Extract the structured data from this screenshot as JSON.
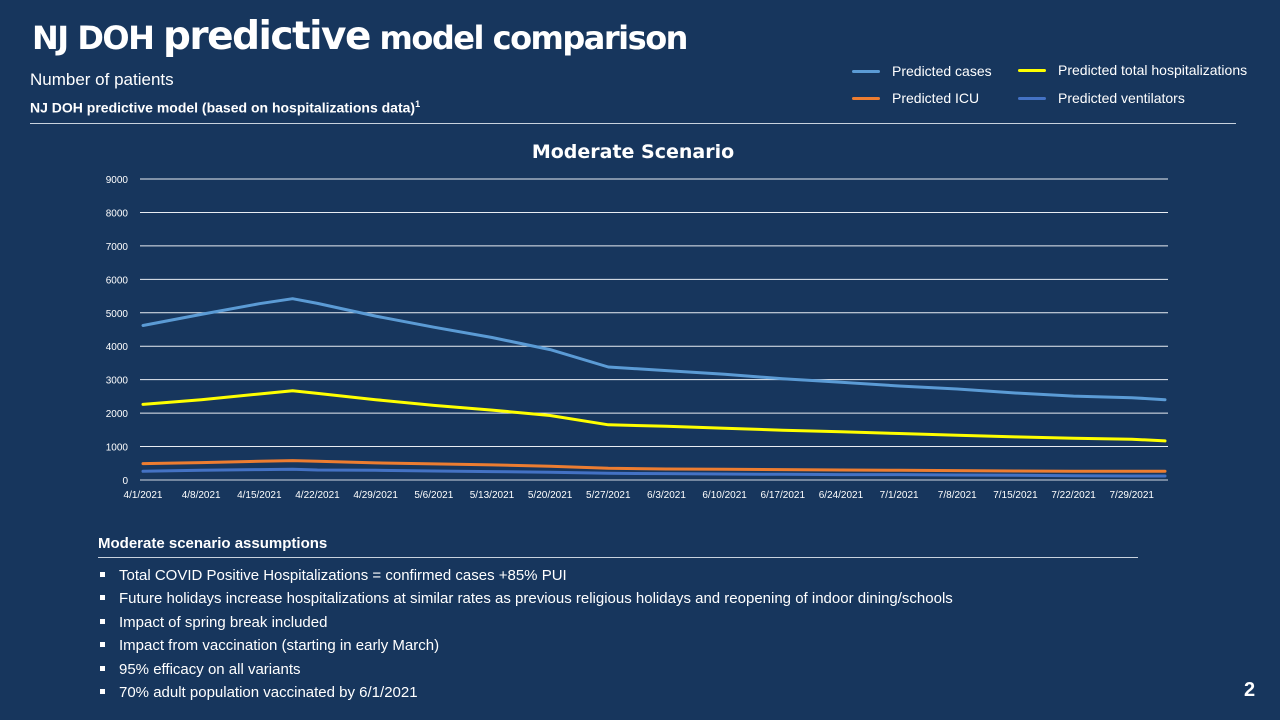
{
  "slide": {
    "title_part1": "NJ DOH",
    "title_part2": "predictive",
    "title_part3": "model comparison",
    "subtitle": "Number of patients",
    "subtitle2": "NJ DOH predictive model (based on hospitalizations data)",
    "subtitle2_sup": "1",
    "page_number": "2"
  },
  "legend": [
    {
      "label": "Predicted cases",
      "color": "#5b9bd5"
    },
    {
      "label": "Predicted total hospitalizations",
      "color": "#ffff00"
    },
    {
      "label": "Predicted ICU",
      "color": "#ed7d31"
    },
    {
      "label": "Predicted ventilators",
      "color": "#4472c4"
    }
  ],
  "chart_data": {
    "type": "line",
    "title": "Moderate Scenario",
    "xlabel": "",
    "ylabel": "",
    "ylim": [
      0,
      9000
    ],
    "yticks": [
      "0",
      "1000",
      "2000",
      "3000",
      "4000",
      "5000",
      "6000",
      "7000",
      "8000",
      "9000"
    ],
    "x_ticks": [
      "4/1/2021",
      "4/8/2021",
      "4/15/2021",
      "4/22/2021",
      "4/29/2021",
      "5/6/2021",
      "5/13/2021",
      "5/20/2021",
      "5/27/2021",
      "6/3/2021",
      "6/10/2021",
      "6/17/2021",
      "6/24/2021",
      "7/1/2021",
      "7/8/2021",
      "7/15/2021",
      "7/22/2021",
      "7/29/2021"
    ],
    "x": [
      "4/1/2021",
      "4/8/2021",
      "4/15/2021",
      "4/19/2021",
      "4/22/2021",
      "4/29/2021",
      "5/6/2021",
      "5/13/2021",
      "5/20/2021",
      "5/27/2021",
      "6/3/2021",
      "6/10/2021",
      "6/17/2021",
      "6/24/2021",
      "7/1/2021",
      "7/8/2021",
      "7/15/2021",
      "7/22/2021",
      "7/29/2021",
      "8/2/2021"
    ],
    "grid": true,
    "legend_position": "top-right",
    "series": [
      {
        "name": "Predicted cases",
        "color": "#5b9bd5",
        "values": [
          4620,
          4950,
          5270,
          5420,
          5280,
          4900,
          4570,
          4260,
          3900,
          3380,
          3270,
          3160,
          3030,
          2920,
          2810,
          2720,
          2600,
          2510,
          2460,
          2400
        ]
      },
      {
        "name": "Predicted total hospitalizations",
        "color": "#ffff00",
        "values": [
          2260,
          2400,
          2570,
          2670,
          2590,
          2400,
          2230,
          2090,
          1930,
          1650,
          1610,
          1550,
          1490,
          1440,
          1390,
          1340,
          1290,
          1250,
          1220,
          1170
        ]
      },
      {
        "name": "Predicted ICU",
        "color": "#ed7d31",
        "values": [
          490,
          520,
          560,
          580,
          560,
          510,
          480,
          450,
          410,
          350,
          330,
          320,
          310,
          300,
          290,
          280,
          270,
          260,
          260,
          260
        ]
      },
      {
        "name": "Predicted ventilators",
        "color": "#4472c4",
        "values": [
          260,
          290,
          310,
          320,
          300,
          290,
          270,
          250,
          230,
          200,
          190,
          180,
          170,
          160,
          160,
          150,
          140,
          130,
          120,
          120
        ]
      }
    ]
  },
  "assumptions": {
    "title": "Moderate scenario assumptions",
    "items": [
      "Total COVID Positive Hospitalizations = confirmed cases +85% PUI",
      "Future holidays increase hospitalizations at similar rates as previous religious holidays and reopening of indoor dining/schools",
      "Impact of spring break included",
      "Impact from vaccination (starting in early March)",
      "95% efficacy on all variants",
      "70% adult population vaccinated by 6/1/2021"
    ]
  }
}
